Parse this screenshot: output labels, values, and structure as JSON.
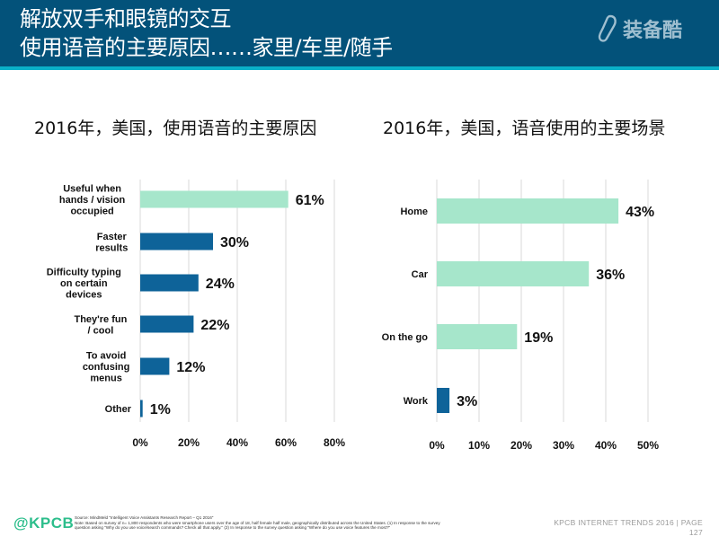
{
  "header": {
    "title_line1": "解放双手和眼镜的交互",
    "title_line2": "使用语音的主要原因……家里/车里/随手",
    "logo_text": "装备酷",
    "bg_color": "#03527A",
    "stripe_color": "#0BB0C8"
  },
  "colors": {
    "highlight_bar": "#A6E6CB",
    "primary_bar": "#0E6399",
    "grid": "#D9D9D9"
  },
  "chart_data": [
    {
      "type": "bar",
      "orientation": "horizontal",
      "title": "2016年，美国，使用语音的主要原因",
      "categories": [
        "Useful when hands / vision occupied",
        "Faster results",
        "Difficulty typing on certain devices",
        "They're fun / cool",
        "To avoid confusing menus",
        "Other"
      ],
      "category_lines": [
        [
          "Useful when",
          "hands / vision",
          "occupied"
        ],
        [
          "Faster",
          "results"
        ],
        [
          "Difficulty typing",
          "on certain",
          "devices"
        ],
        [
          "They're fun",
          "/ cool"
        ],
        [
          "To avoid",
          "confusing",
          "menus"
        ],
        [
          "Other"
        ]
      ],
      "values": [
        61,
        30,
        24,
        22,
        12,
        1
      ],
      "value_labels": [
        "61%",
        "30%",
        "24%",
        "22%",
        "12%",
        "1%"
      ],
      "highlight": [
        true,
        false,
        false,
        false,
        false,
        false
      ],
      "xlim": [
        0,
        80
      ],
      "xticks": [
        0,
        20,
        40,
        60,
        80
      ],
      "xtick_labels": [
        "0%",
        "20%",
        "40%",
        "60%",
        "80%"
      ],
      "grid": true,
      "xlabel": "",
      "ylabel": ""
    },
    {
      "type": "bar",
      "orientation": "horizontal",
      "title": "2016年，美国，语音使用的主要场景",
      "categories": [
        "Home",
        "Car",
        "On the go",
        "Work"
      ],
      "category_lines": [
        [
          "Home"
        ],
        [
          "Car"
        ],
        [
          "On the go"
        ],
        [
          "Work"
        ]
      ],
      "values": [
        43,
        36,
        19,
        3
      ],
      "value_labels": [
        "43%",
        "36%",
        "19%",
        "3%"
      ],
      "highlight": [
        true,
        true,
        true,
        false
      ],
      "xlim": [
        0,
        50
      ],
      "xticks": [
        0,
        10,
        20,
        30,
        40,
        50
      ],
      "xtick_labels": [
        "0%",
        "10%",
        "20%",
        "30%",
        "40%",
        "50%"
      ],
      "grid": true,
      "xlabel": "",
      "ylabel": ""
    }
  ],
  "footer": {
    "brand": "@KPCB",
    "source_line1": "Source: MindMeld \"Intelligent Voice Assistants Research Report – Q1 2016\"",
    "source_line2": "Note: Based on survey of n= 1,800 respondents who were smartphone users over the age of 18, half female half male, geographically distributed across the United States. (1) In response to the survey",
    "source_line3": "question asking \"Why do you use voice/search commands? Check all that apply.\" (2) In response to the survey question asking \"Where do you use voice features the most?\"",
    "page_label": "KPCB INTERNET TRENDS 2016  |  PAGE",
    "page_number": "127"
  }
}
